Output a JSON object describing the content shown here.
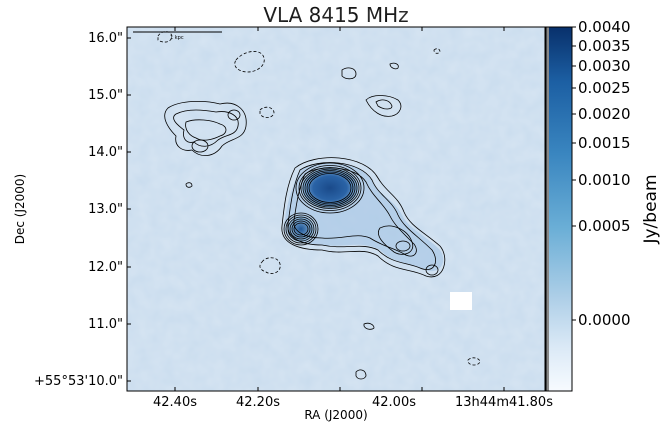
{
  "title": "VLA 8415 MHz",
  "xlabel": "RA (J2000)",
  "ylabel": "Dec (J2000)",
  "x_ticks": [
    "42.40s",
    "42.20s",
    "42.00s",
    "13h44m41.80s"
  ],
  "y_ticks": [
    "16.0\"",
    "15.0\"",
    "14.0\"",
    "13.0\"",
    "12.0\"",
    "11.0\"",
    "+55°53'10.0\""
  ],
  "scale_bar_label": "1 kpc",
  "colorbar": {
    "label": "Jy/beam",
    "ticks": [
      "0.0040",
      "0.0035",
      "0.0030",
      "0.0025",
      "0.0020",
      "0.0015",
      "0.0010",
      "0.0005",
      "0.0000"
    ]
  },
  "colors": {
    "background_map": "#c9dcee",
    "core": "#1d4f8f",
    "contour": "#000000",
    "colorbar_top": "#08306b",
    "colorbar_bottom": "#f7fbff"
  }
}
